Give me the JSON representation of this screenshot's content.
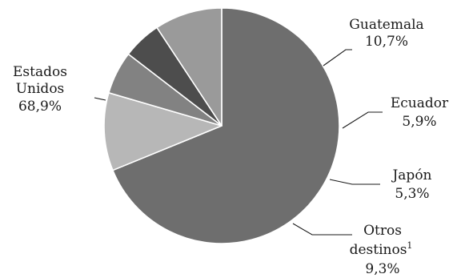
{
  "chart_data": {
    "type": "pie",
    "slices": [
      {
        "label": "Estados Unidos",
        "value": 68.9,
        "value_text": "68,9%",
        "color": "#6e6e6e"
      },
      {
        "label": "Guatemala",
        "value": 10.7,
        "value_text": "10,7%",
        "color": "#b7b7b7"
      },
      {
        "label": "Ecuador",
        "value": 5.9,
        "value_text": "5,9%",
        "color": "#828282"
      },
      {
        "label": "Japón",
        "value": 5.3,
        "value_text": "5,3%",
        "color": "#4d4d4d"
      },
      {
        "label": "Otros destinos",
        "footnote_marker": "1",
        "value": 9.3,
        "value_text": "9,3%",
        "color": "#9a9a9a"
      }
    ],
    "label_lines": {
      "estados_unidos": [
        "Estados",
        "Unidos"
      ],
      "otros_destinos": [
        "Otros",
        "destinos"
      ]
    },
    "legend": "none",
    "slice_border_color": "#ffffff",
    "start_angle_deg": 0,
    "direction": "clockwise-from-top"
  }
}
